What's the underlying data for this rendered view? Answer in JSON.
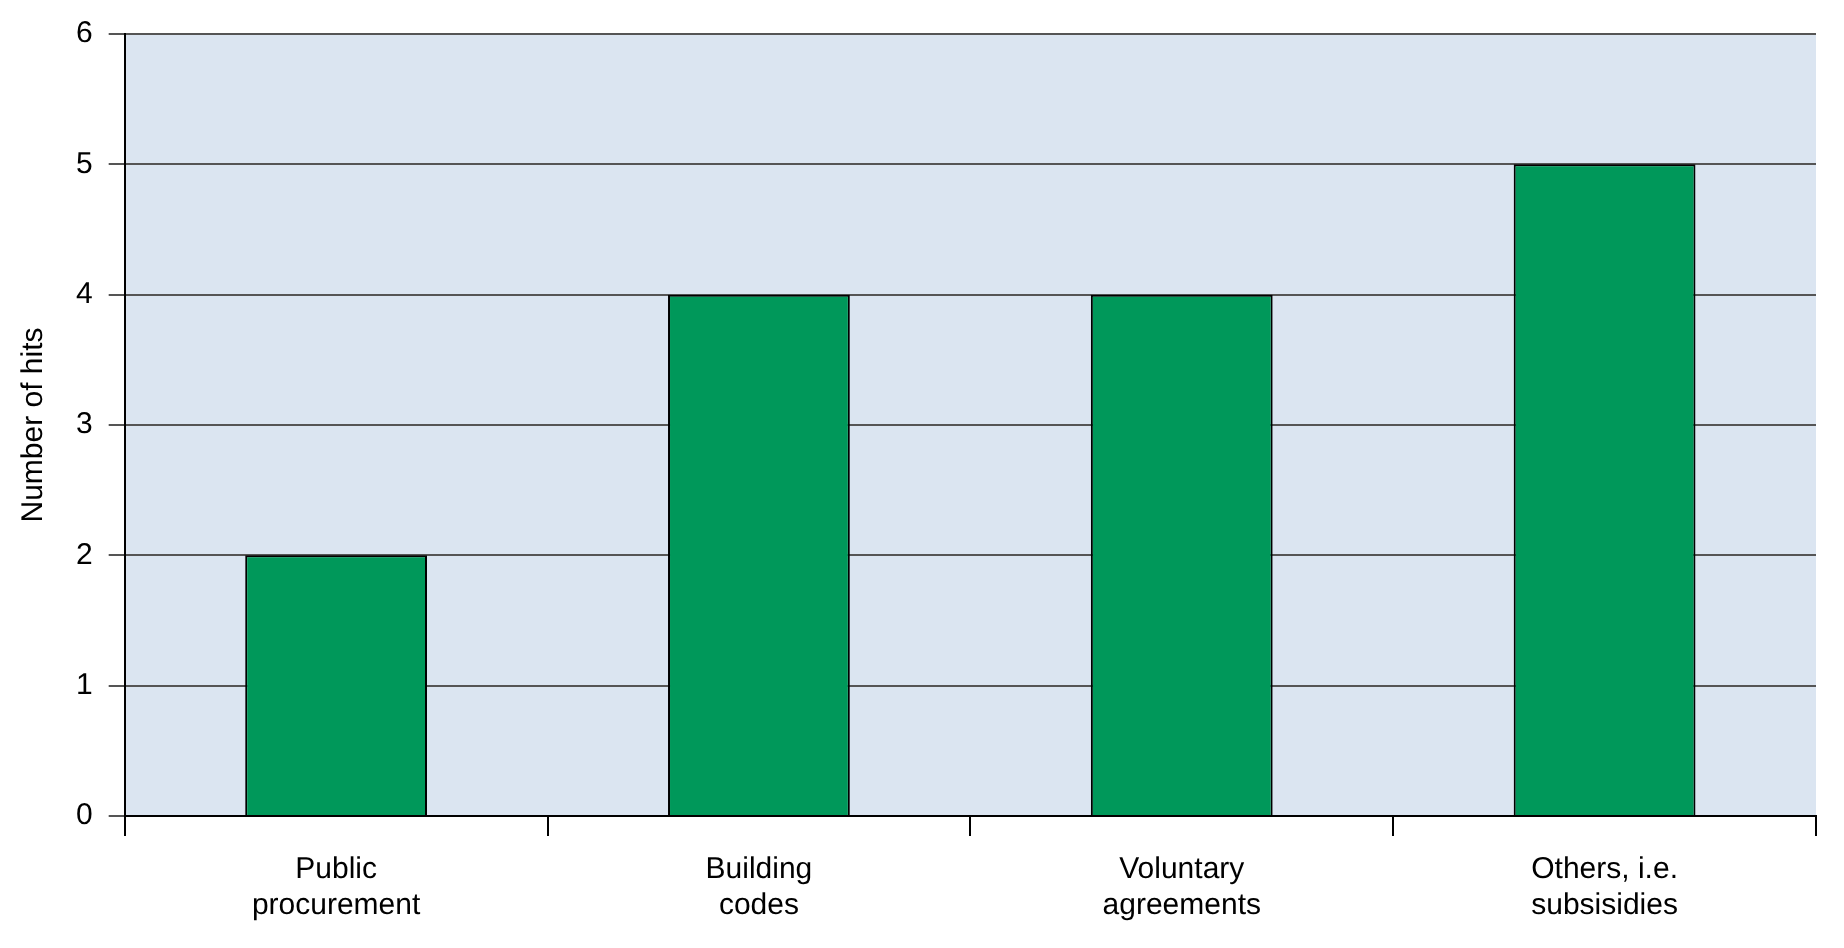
{
  "chart_data": {
    "type": "bar",
    "ylabel": "Number of hits",
    "categories": [
      "Public procurement",
      "Building codes",
      "Voluntary agreements",
      "Others, i.e. subsisidies"
    ],
    "values": [
      2,
      4,
      4,
      5
    ],
    "color": "#00985a",
    "ylim": [
      0,
      6
    ],
    "yticks": [
      0,
      1,
      2,
      3,
      4,
      5,
      6
    ],
    "grid": "y",
    "legend": false
  }
}
